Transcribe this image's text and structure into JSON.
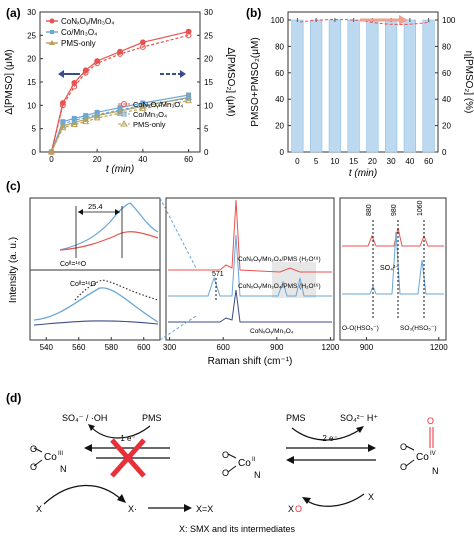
{
  "panels": {
    "a": {
      "label": "(a)",
      "ylabel_left": "Δ[PMSO] (μM)",
      "ylabel_right": "Δ[PMSO₂] (μM)",
      "xlabel": "t (min)",
      "yticks": [
        "0",
        "5",
        "10",
        "15",
        "20",
        "25",
        "30"
      ],
      "xticks": [
        "0",
        "20",
        "40",
        "60"
      ],
      "legend_solid": [
        "CoNₓOᵧ/Mn₃O₄",
        "Co/Mn₃O₄",
        "PMS-only"
      ],
      "legend_dashed": [
        "CoNₓOᵧ/Mn₃O₄",
        "Co/Mn₃O₄",
        "PMS-only"
      ]
    },
    "b": {
      "label": "(b)",
      "ylabel_left": "PMSO+PMSO₂(μM)",
      "ylabel_right": "η[PMSO₂] (%)",
      "xlabel": "t (min)",
      "yticks_left": [
        "0",
        "20",
        "40",
        "60",
        "80",
        "100"
      ],
      "yticks_right": [
        "0",
        "20",
        "40",
        "60",
        "80",
        "100"
      ],
      "xticks": [
        "0",
        "5",
        "10",
        "15",
        "20",
        "30",
        "40",
        "60"
      ]
    },
    "c": {
      "label": "(c)",
      "ylabel": "Intensity (a. u.)",
      "xlabel": "Raman shift (cm⁻¹)",
      "left_xticks": [
        "540",
        "560",
        "580",
        "600"
      ],
      "mid_xticks": [
        "300",
        "600",
        "900",
        "1200"
      ],
      "right_xticks": [
        "900",
        "1200"
      ],
      "shift_label": "25.4",
      "co16": "Coᴵᴵ=¹⁶O",
      "co18": "Coᴵᴵ=¹⁸O",
      "peak571": "571",
      "trace_labels": [
        "CoNₓOᵧ/Mn₃O₄/PMS (H₂O¹⁸)",
        "CoNₓOᵧ/Mn₃O₄/PMS (H₂O¹⁶)",
        "CoNₓOᵧ/Mn₃O₄"
      ],
      "peaks_right": [
        "880",
        "980",
        "1060"
      ],
      "so4": "SO₄²⁻",
      "oo_label": "O-O(HSO₅⁻)",
      "so3_label": "SO₃(HSO₅⁻)"
    },
    "d": {
      "label": "(d)",
      "so4_oh": "SO₄⁻ / ·OH",
      "pms_left": "PMS",
      "one_e": "1 e⁻",
      "co3_sup": "III",
      "co2_sup": "II",
      "co4_sup": "IV",
      "pms_right": "PMS",
      "so4_h": "SO₄²⁻  H⁺",
      "two_e": "2 e⁻",
      "x_left": "X",
      "x_rad": "X·",
      "xx": "X=X",
      "xo_x": "X",
      "xo_o": "O",
      "x_right": "X",
      "caption": "X: SMX and its intermediates"
    }
  },
  "chart_data": [
    {
      "type": "line",
      "x": [
        0,
        5,
        10,
        15,
        20,
        30,
        40,
        60
      ],
      "series": [
        {
          "name": "CoNₓOᵧ/Mn₃O₄",
          "values": [
            0,
            10.5,
            14.8,
            17.5,
            19.5,
            21.5,
            23.5,
            25.8
          ]
        },
        {
          "name": "Co/Mn₃O₄",
          "values": [
            0,
            6.5,
            7.2,
            7.8,
            8.5,
            9.5,
            10.5,
            12.2
          ]
        },
        {
          "name": "PMS-only",
          "values": [
            0,
            5.6,
            6.3,
            7.0,
            7.8,
            8.8,
            9.8,
            11.7
          ]
        }
      ],
      "series_dashed": [
        {
          "name": "CoNₓOᵧ/Mn₃O₄",
          "values": [
            0,
            10.0,
            14.0,
            17.0,
            19.0,
            21.0,
            22.5,
            25.0
          ]
        },
        {
          "name": "Co/Mn₃O₄",
          "values": [
            0,
            6.0,
            6.8,
            7.4,
            8.0,
            9.0,
            10.0,
            11.5
          ]
        },
        {
          "name": "PMS-only",
          "values": [
            0,
            5.2,
            5.9,
            6.5,
            7.3,
            8.3,
            9.3,
            11.0
          ]
        }
      ],
      "ylim": [
        0,
        30
      ],
      "xlim": [
        -5,
        65
      ]
    },
    {
      "type": "bar",
      "categories": [
        "0",
        "5",
        "10",
        "15",
        "20",
        "30",
        "40",
        "60"
      ],
      "values": [
        100,
        100,
        100,
        100,
        100,
        100,
        100,
        100
      ],
      "ylim": [
        0,
        100
      ]
    }
  ],
  "colors": {
    "red": "#e8524f",
    "blue": "#6aa6d6",
    "olive": "#b8a15a",
    "arrow_navy": "#3b4b8c",
    "pale_blue": "#bcd9f0",
    "black": "#111111"
  }
}
